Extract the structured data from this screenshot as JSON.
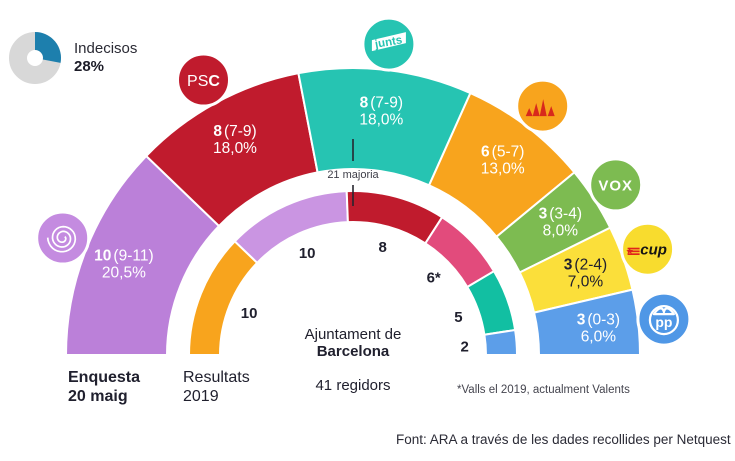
{
  "undecided": {
    "label": "Indecisos",
    "value": "28%",
    "pct": 28,
    "color": "#1d7fad",
    "track_color": "#d8d8d8"
  },
  "center": {
    "line1": "Ajuntament de",
    "line2": "Barcelona",
    "line3": "41 regidors"
  },
  "series_labels": {
    "enquesta": {
      "line1": "Enquesta",
      "line2": "20 maig"
    },
    "resultats": {
      "line1": "Resultats",
      "line2": "2019"
    }
  },
  "footnote": {
    "text": "*Valls el 2019, actualment Valents"
  },
  "source": {
    "text": "Font: ARA a través de les dades recollides per Netquest"
  },
  "chart_data": {
    "type": "half-donut",
    "title": "Ajuntament de Barcelona",
    "total_seats": 41,
    "majority": {
      "seats": 21,
      "label": "21 majoria"
    },
    "rings": [
      {
        "id": "enquesta",
        "name": "Enquesta 20 maig",
        "segments": [
          {
            "id": "bcomu",
            "party": "BComú",
            "seats": 10,
            "range": "(9-11)",
            "pct": "20,5%",
            "color": "#bb80d9",
            "label_color": "#ffffff",
            "badge": {
              "icon": "bcomu-spiral-icon",
              "color": "#c48be0"
            }
          },
          {
            "id": "psc",
            "party": "PSC",
            "seats": 8,
            "range": "(7-9)",
            "pct": "18,0%",
            "color": "#c01b2d",
            "label_color": "#ffffff",
            "badge": {
              "icon": "psc-logo-icon",
              "color": "#c01b2d",
              "text_pre": "PS",
              "text_bold": "C"
            }
          },
          {
            "id": "junts",
            "party": "Junts",
            "seats": 8,
            "range": "(7-9)",
            "pct": "18,0%",
            "color": "#26c4b2",
            "label_color": "#ffffff",
            "badge": {
              "icon": "junts-logo-icon",
              "color": "#26c4b2",
              "text": "junts"
            }
          },
          {
            "id": "erc",
            "party": "ERC",
            "seats": 6,
            "range": "(5-7)",
            "pct": "13,0%",
            "color": "#f8a41d",
            "label_color": "#ffffff",
            "badge": {
              "icon": "erc-logo-icon",
              "color": "#f8a41d"
            }
          },
          {
            "id": "vox",
            "party": "VOX",
            "seats": 3,
            "range": "(3-4)",
            "pct": "8,0%",
            "color": "#7dbb51",
            "label_color": "#ffffff",
            "badge": {
              "icon": "vox-logo-icon",
              "color": "#7dbb51",
              "text": "VOX"
            }
          },
          {
            "id": "cup",
            "party": "CUP",
            "seats": 3,
            "range": "(2-4)",
            "pct": "7,0%",
            "color": "#fbdf3a",
            "label_color": "#20202e",
            "badge": {
              "icon": "cup-logo-icon",
              "color": "#f8dc2e",
              "text": "cup"
            }
          },
          {
            "id": "pp",
            "party": "PP",
            "seats": 3,
            "range": "(0-3)",
            "pct": "6,0%",
            "color": "#5c9ee9",
            "label_color": "#ffffff",
            "badge": {
              "icon": "pp-logo-icon",
              "color": "#4f97e6",
              "text": "pp"
            }
          }
        ]
      },
      {
        "id": "resultats",
        "name": "Resultats 2019",
        "segments": [
          {
            "id": "erc",
            "party": "ERC",
            "seats": 10,
            "label": "10",
            "color": "#f8a41d"
          },
          {
            "id": "bcomu",
            "party": "BComú",
            "seats": 10,
            "label": "10",
            "color": "#ca95e2"
          },
          {
            "id": "psc",
            "party": "PSC",
            "seats": 8,
            "label": "8",
            "color": "#c01b2d"
          },
          {
            "id": "valls",
            "party": "Valls",
            "seats": 6,
            "label": "6*",
            "color": "#e24b7c"
          },
          {
            "id": "junts",
            "party": "Junts",
            "seats": 5,
            "label": "5",
            "color": "#12bfa2"
          },
          {
            "id": "pp",
            "party": "PP",
            "seats": 2,
            "label": "2",
            "color": "#5c9ee9"
          }
        ]
      }
    ]
  }
}
